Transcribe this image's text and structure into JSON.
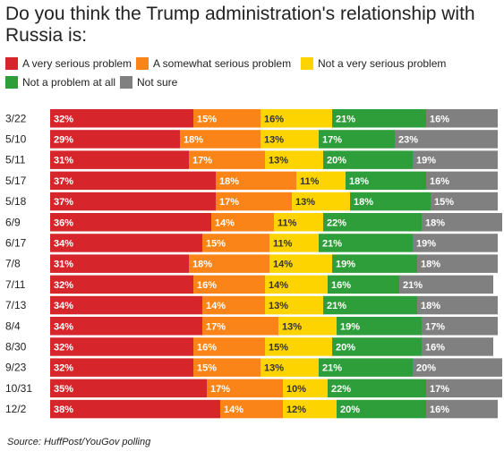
{
  "title": "Do you think the Trump administration's relationship with Russia is:",
  "source": "Source: HuffPost/YouGov polling",
  "colors": {
    "very_serious": "#d6262b",
    "somewhat_serious": "#fb8418",
    "not_very_serious": "#fdd400",
    "not_a_problem": "#2e9e3a",
    "not_sure": "#808080"
  },
  "chart_data": {
    "type": "bar",
    "orientation": "horizontal",
    "stacked": true,
    "title": "Do you think the Trump administration's relationship with Russia is:",
    "xlabel": "",
    "ylabel": "",
    "categories": [
      "3/22",
      "5/10",
      "5/11",
      "5/17",
      "5/18",
      "6/9",
      "6/17",
      "7/8",
      "7/11",
      "7/13",
      "8/4",
      "8/30",
      "9/23",
      "10/31",
      "12/2"
    ],
    "legend_position": "top",
    "series": [
      {
        "name": "A very serious problem",
        "color": "#d6262b",
        "values": [
          32,
          29,
          31,
          37,
          37,
          36,
          34,
          31,
          32,
          34,
          34,
          32,
          32,
          35,
          38
        ]
      },
      {
        "name": "A somewhat serious problem",
        "color": "#fb8418",
        "values": [
          15,
          18,
          17,
          18,
          17,
          14,
          15,
          18,
          16,
          14,
          17,
          16,
          15,
          17,
          14
        ]
      },
      {
        "name": "Not a very serious problem",
        "color": "#fdd400",
        "values": [
          16,
          13,
          13,
          11,
          13,
          11,
          11,
          14,
          14,
          13,
          13,
          15,
          13,
          10,
          12
        ]
      },
      {
        "name": "Not a problem at all",
        "color": "#2e9e3a",
        "values": [
          21,
          17,
          20,
          18,
          18,
          22,
          21,
          19,
          16,
          21,
          19,
          20,
          21,
          22,
          20
        ]
      },
      {
        "name": "Not sure",
        "color": "#808080",
        "values": [
          16,
          23,
          19,
          16,
          15,
          18,
          19,
          18,
          21,
          18,
          17,
          16,
          20,
          17,
          16
        ]
      }
    ]
  }
}
